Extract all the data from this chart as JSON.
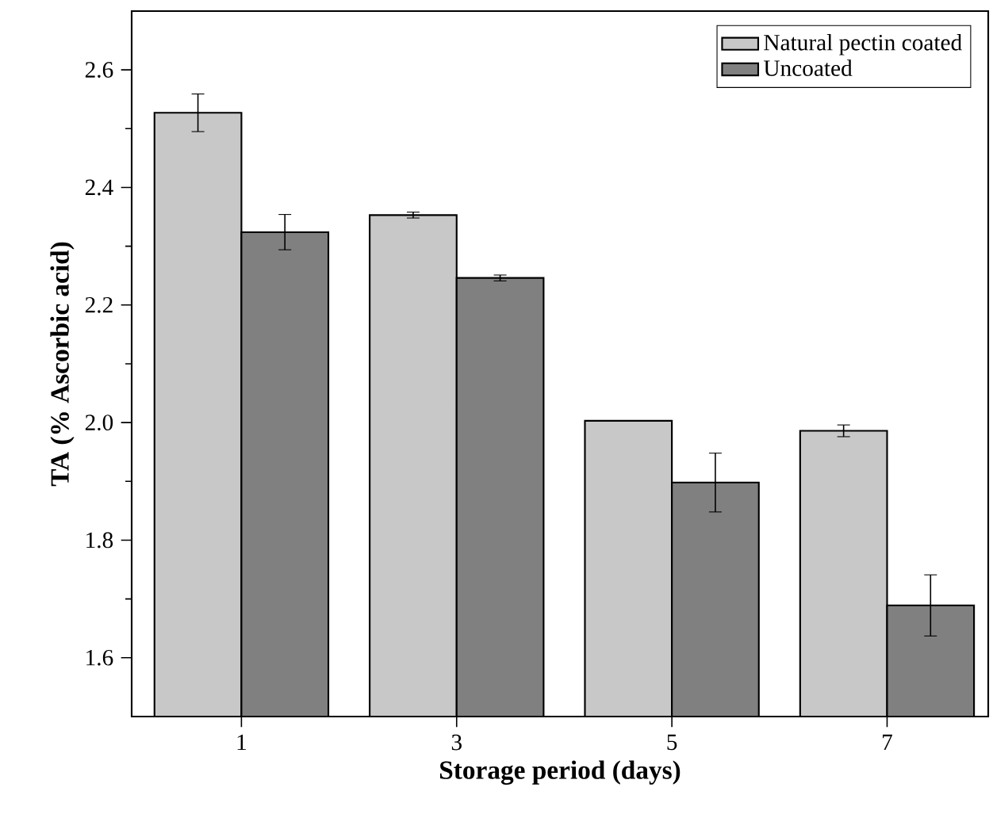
{
  "chart_data": {
    "type": "bar",
    "xlabel": "Storage period (days)",
    "ylabel": "TA (% Ascorbic acid)",
    "categories": [
      "1",
      "3",
      "5",
      "7"
    ],
    "series": [
      {
        "name": "Natural pectin coated",
        "color": "#c8c8c8",
        "values": [
          2.527,
          2.353,
          2.003,
          1.986
        ],
        "errors": [
          0.032,
          0.005,
          null,
          0.01
        ]
      },
      {
        "name": "Uncoated",
        "color": "#808080",
        "values": [
          2.324,
          2.246,
          1.898,
          1.689
        ],
        "errors": [
          0.03,
          0.005,
          0.05,
          0.052
        ]
      }
    ],
    "ylim": [
      1.5,
      2.7
    ],
    "yticks": [
      1.6,
      1.8,
      {
        "value": 2.0,
        "label": "2.0"
      },
      2.2,
      2.4,
      2.6
    ],
    "legend": "top right",
    "grid": false
  }
}
